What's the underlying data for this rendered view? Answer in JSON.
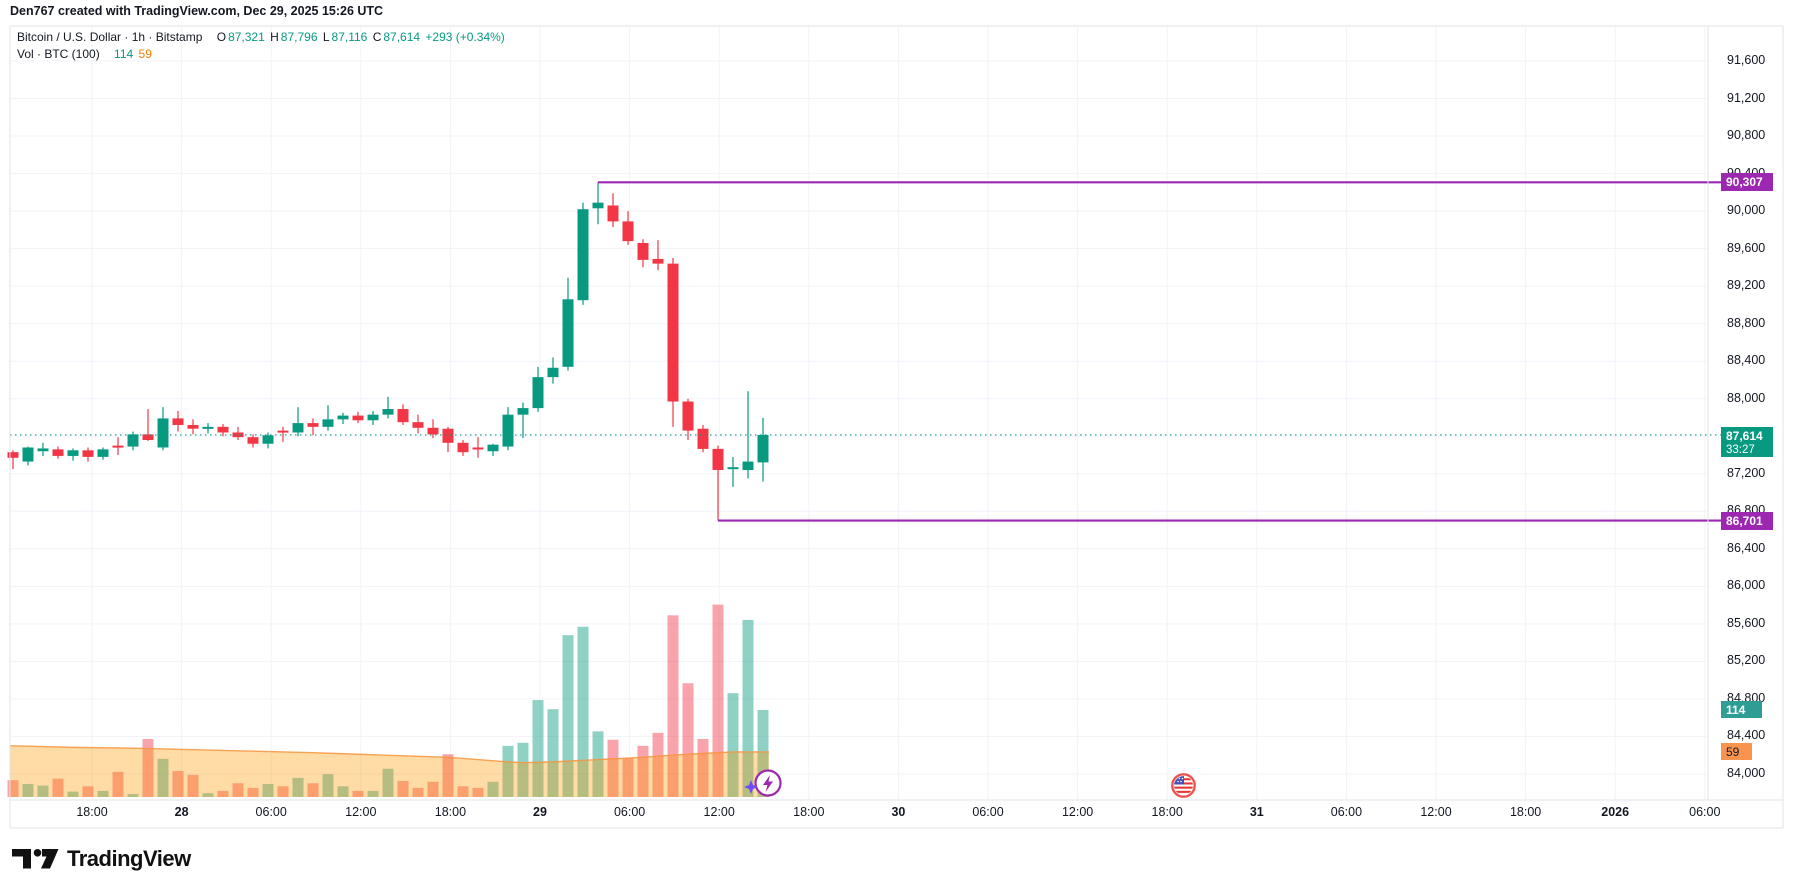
{
  "credit_line": "Den767 created with TradingView.com, Dec 29, 2025 15:26 UTC",
  "legend": {
    "symbol_line": {
      "title": "Bitcoin / U.S. Dollar · 1h · Bitstamp",
      "o_label": "O",
      "o": "87,321",
      "h_label": "H",
      "h": "87,796",
      "l_label": "L",
      "l": "87,116",
      "c_label": "C",
      "c": "87,614",
      "change": "+293 (+0.34%)"
    },
    "volume_line": {
      "title": "Vol · BTC (100)",
      "current": "114",
      "ma": "59"
    }
  },
  "axis_labels": {
    "resistance": "90,307",
    "support": "86,701",
    "last": "87,614",
    "countdown": "33:27",
    "vol_current": "114",
    "vol_ma": "59"
  },
  "footer": {
    "logo_text": "TradingView"
  },
  "chart_data": {
    "type": "candlestick",
    "symbol": "Bitcoin / U.S. Dollar",
    "exchange": "Bitstamp",
    "interval": "1h",
    "legend_ohlc": {
      "open": 87321,
      "high": 87796,
      "low": 87116,
      "close": 87614,
      "change": 293,
      "change_pct": 0.34
    },
    "price_axis": {
      "min": 84000,
      "max": 91600,
      "step": 400
    },
    "price_ticks": [
      "91,600",
      "91,200",
      "90,800",
      "90,400",
      "90,000",
      "89,600",
      "89,200",
      "88,800",
      "88,400",
      "88,000",
      "87,200",
      "86,800",
      "86,400",
      "86,000",
      "85,600",
      "85,200",
      "84,800",
      "84,400",
      "84,000"
    ],
    "time_ticks": [
      {
        "label": "18:00",
        "bold": false
      },
      {
        "label": "28",
        "bold": true
      },
      {
        "label": "06:00",
        "bold": false
      },
      {
        "label": "12:00",
        "bold": false
      },
      {
        "label": "18:00",
        "bold": false
      },
      {
        "label": "29",
        "bold": true
      },
      {
        "label": "06:00",
        "bold": false
      },
      {
        "label": "12:00",
        "bold": false
      },
      {
        "label": "18:00",
        "bold": false
      },
      {
        "label": "30",
        "bold": true
      },
      {
        "label": "06:00",
        "bold": false
      },
      {
        "label": "12:00",
        "bold": false
      },
      {
        "label": "18:00",
        "bold": false
      },
      {
        "label": "31",
        "bold": true
      },
      {
        "label": "06:00",
        "bold": false
      },
      {
        "label": "12:00",
        "bold": false
      },
      {
        "label": "18:00",
        "bold": false
      },
      {
        "label": "2026",
        "bold": true
      },
      {
        "label": "06:00",
        "bold": false
      }
    ],
    "levels": {
      "resistance": 90307,
      "support": 86701,
      "last_price": 87614,
      "vol_current": 114,
      "vol_ma": 59
    },
    "candles": [
      [
        87430,
        87450,
        87250,
        87370
      ],
      [
        87330,
        87490,
        87290,
        87480
      ],
      [
        87440,
        87530,
        87390,
        87470
      ],
      [
        87460,
        87490,
        87360,
        87390
      ],
      [
        87390,
        87470,
        87340,
        87450
      ],
      [
        87450,
        87480,
        87330,
        87380
      ],
      [
        87380,
        87480,
        87350,
        87460
      ],
      [
        87500,
        87590,
        87400,
        87490
      ],
      [
        87490,
        87650,
        87450,
        87620
      ],
      [
        87620,
        87890,
        87550,
        87560
      ],
      [
        87480,
        87910,
        87450,
        87790
      ],
      [
        87790,
        87870,
        87650,
        87720
      ],
      [
        87720,
        87780,
        87620,
        87680
      ],
      [
        87680,
        87740,
        87630,
        87700
      ],
      [
        87700,
        87730,
        87600,
        87640
      ],
      [
        87640,
        87700,
        87560,
        87590
      ],
      [
        87590,
        87620,
        87480,
        87520
      ],
      [
        87520,
        87640,
        87470,
        87610
      ],
      [
        87660,
        87700,
        87540,
        87650
      ],
      [
        87640,
        87910,
        87600,
        87740
      ],
      [
        87740,
        87790,
        87610,
        87700
      ],
      [
        87700,
        87930,
        87660,
        87780
      ],
      [
        87780,
        87850,
        87730,
        87820
      ],
      [
        87820,
        87860,
        87740,
        87770
      ],
      [
        87770,
        87870,
        87720,
        87830
      ],
      [
        87830,
        88020,
        87790,
        87890
      ],
      [
        87890,
        87940,
        87720,
        87750
      ],
      [
        87750,
        87830,
        87630,
        87690
      ],
      [
        87690,
        87780,
        87580,
        87620
      ],
      [
        87680,
        87700,
        87430,
        87530
      ],
      [
        87530,
        87560,
        87390,
        87430
      ],
      [
        87480,
        87590,
        87370,
        87470
      ],
      [
        87440,
        87520,
        87390,
        87510
      ],
      [
        87490,
        87910,
        87450,
        87830
      ],
      [
        87830,
        87960,
        87580,
        87900
      ],
      [
        87900,
        88340,
        87860,
        88230
      ],
      [
        88230,
        88440,
        88160,
        88330
      ],
      [
        88340,
        89290,
        88300,
        89060
      ],
      [
        89050,
        90090,
        89000,
        90020
      ],
      [
        90030,
        90307,
        89860,
        90090
      ],
      [
        90060,
        90190,
        89830,
        89890
      ],
      [
        89890,
        90000,
        89640,
        89680
      ],
      [
        89660,
        89700,
        89400,
        89480
      ],
      [
        89490,
        89690,
        89370,
        89440
      ],
      [
        89440,
        89500,
        87700,
        87970
      ],
      [
        87970,
        88000,
        87560,
        87660
      ],
      [
        87680,
        87720,
        87430,
        87465
      ],
      [
        87465,
        87500,
        86701,
        87240
      ],
      [
        87260,
        87380,
        87060,
        87270
      ],
      [
        87240,
        88080,
        87150,
        87330
      ],
      [
        87321,
        87796,
        87116,
        87614
      ]
    ],
    "volumes": [
      22,
      17,
      15,
      24,
      7,
      14,
      8,
      33,
      4,
      76,
      50,
      34,
      29,
      5,
      8,
      18,
      12,
      17,
      14,
      25,
      18,
      30,
      14,
      8,
      8,
      37,
      21,
      12,
      20,
      56,
      14,
      12,
      20,
      67,
      71,
      127,
      115,
      212,
      223,
      86,
      75,
      51,
      67,
      84,
      238,
      149,
      76,
      252,
      136,
      232,
      114
    ],
    "volume_ma_points": [
      [
        0,
        67
      ],
      [
        4,
        65
      ],
      [
        8,
        64
      ],
      [
        12,
        62
      ],
      [
        16,
        60
      ],
      [
        20,
        58
      ],
      [
        23,
        56
      ],
      [
        26,
        54
      ],
      [
        29,
        52
      ],
      [
        31,
        49
      ],
      [
        33,
        46
      ],
      [
        34,
        45
      ],
      [
        36,
        46
      ],
      [
        38,
        48
      ],
      [
        40,
        50
      ],
      [
        42,
        52
      ],
      [
        44,
        55
      ],
      [
        46,
        57
      ],
      [
        48,
        59
      ],
      [
        50,
        59
      ]
    ],
    "colors": {
      "up": "#089981",
      "down": "#f23645",
      "vol_up": "rgba(8,153,129,0.45)",
      "vol_down": "rgba(242,54,69,0.45)",
      "vol_ma_fill": "rgba(255,152,0,0.35)",
      "vol_ma_line": "rgba(247,148,61,0.85)",
      "level_line": "#9c27b0",
      "last_line": "#089981",
      "grid": "#f0f3fa",
      "frame": "#e0e3eb",
      "last_label_bg": "#089981",
      "level_label_bg": "#9c27b0",
      "vol_label_bg": "#2e9d94",
      "vol_ma_label_bg": "#f8944d"
    }
  }
}
